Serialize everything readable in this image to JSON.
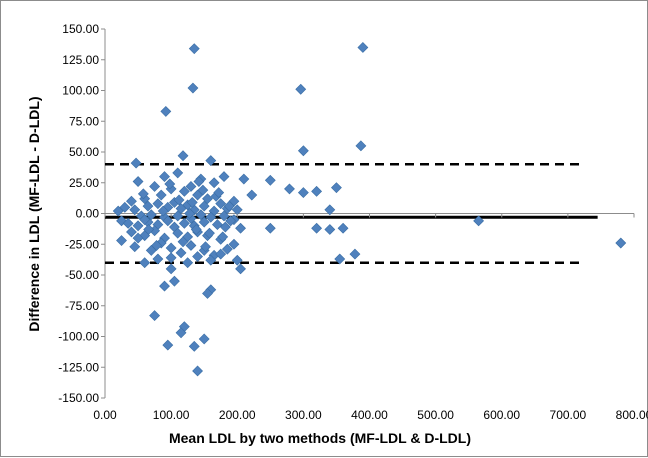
{
  "chart_data": {
    "type": "scatter",
    "title": "",
    "xlabel": "Mean LDL by two methods (MF-LDL & D-LDL)",
    "ylabel": "Difference in LDL (MF-LDL - D-LDL)",
    "xlim": [
      0,
      800
    ],
    "ylim": [
      -150,
      150
    ],
    "x_ticks": [
      "0.00",
      "100.00",
      "200.00",
      "300.00",
      "400.00",
      "500.00",
      "600.00",
      "700.00",
      "800.00"
    ],
    "y_ticks": [
      "150.00",
      "125.00",
      "100.00",
      "75.00",
      "50.00",
      "25.00",
      "0.00",
      "-25.00",
      "-50.00",
      "-75.00",
      "-100.00",
      "-125.00",
      "-150.00"
    ],
    "reference_lines": [
      {
        "style": "solid",
        "y": -3,
        "x_range": [
          0,
          745
        ]
      },
      {
        "style": "dashed",
        "y": 40,
        "x_range": [
          0,
          720
        ]
      },
      {
        "style": "dashed",
        "y": -40,
        "x_range": [
          0,
          720
        ]
      }
    ],
    "marker_color": "#4f81bd",
    "series": [
      {
        "points": [
          [
            135,
            134
          ],
          [
            133,
            102
          ],
          [
            296,
            101
          ],
          [
            92,
            83
          ],
          [
            390,
            135
          ],
          [
            300,
            51
          ],
          [
            387,
            55
          ],
          [
            118,
            47
          ],
          [
            160,
            43
          ],
          [
            47,
            41
          ],
          [
            180,
            30
          ],
          [
            90,
            30
          ],
          [
            210,
            28
          ],
          [
            250,
            27
          ],
          [
            279,
            20
          ],
          [
            300,
            17
          ],
          [
            320,
            18
          ],
          [
            350,
            21
          ],
          [
            340,
            3
          ],
          [
            222,
            15
          ],
          [
            110,
            33
          ],
          [
            145,
            28
          ],
          [
            165,
            25
          ],
          [
            50,
            26
          ],
          [
            75,
            22
          ],
          [
            100,
            20
          ],
          [
            130,
            22
          ],
          [
            195,
            10
          ],
          [
            40,
            10
          ],
          [
            60,
            12
          ],
          [
            85,
            15
          ],
          [
            120,
            18
          ],
          [
            140,
            15
          ],
          [
            155,
            12
          ],
          [
            175,
            8
          ],
          [
            20,
            2
          ],
          [
            30,
            5
          ],
          [
            45,
            3
          ],
          [
            65,
            6
          ],
          [
            80,
            8
          ],
          [
            95,
            5
          ],
          [
            105,
            9
          ],
          [
            115,
            4
          ],
          [
            125,
            7
          ],
          [
            135,
            3
          ],
          [
            150,
            6
          ],
          [
            165,
            2
          ],
          [
            185,
            4
          ],
          [
            200,
            3
          ],
          [
            55,
            -2
          ],
          [
            70,
            -1
          ],
          [
            90,
            -3
          ],
          [
            110,
            -2
          ],
          [
            130,
            -4
          ],
          [
            145,
            -1
          ],
          [
            160,
            -3
          ],
          [
            180,
            -2
          ],
          [
            195,
            -5
          ],
          [
            25,
            -6
          ],
          [
            35,
            -8
          ],
          [
            50,
            -10
          ],
          [
            65,
            -7
          ],
          [
            80,
            -9
          ],
          [
            95,
            -6
          ],
          [
            105,
            -11
          ],
          [
            120,
            -8
          ],
          [
            135,
            -10
          ],
          [
            150,
            -7
          ],
          [
            170,
            -9
          ],
          [
            190,
            -6
          ],
          [
            205,
            -12
          ],
          [
            40,
            -15
          ],
          [
            60,
            -18
          ],
          [
            75,
            -14
          ],
          [
            90,
            -20
          ],
          [
            110,
            -16
          ],
          [
            125,
            -19
          ],
          [
            140,
            -15
          ],
          [
            155,
            -18
          ],
          [
            175,
            -21
          ],
          [
            195,
            -25
          ],
          [
            25,
            -22
          ],
          [
            45,
            -27
          ],
          [
            70,
            -30
          ],
          [
            85,
            -24
          ],
          [
            100,
            -28
          ],
          [
            115,
            -32
          ],
          [
            130,
            -26
          ],
          [
            150,
            -30
          ],
          [
            165,
            -34
          ],
          [
            200,
            -38
          ],
          [
            205,
            -45
          ],
          [
            250,
            -12
          ],
          [
            320,
            -12
          ],
          [
            340,
            -13
          ],
          [
            360,
            -12
          ],
          [
            378,
            -33
          ],
          [
            355,
            -37
          ],
          [
            565,
            -6
          ],
          [
            780,
            -24
          ],
          [
            100,
            -45
          ],
          [
            90,
            -59
          ],
          [
            105,
            -55
          ],
          [
            160,
            -62
          ],
          [
            155,
            -65
          ],
          [
            75,
            -83
          ],
          [
            120,
            -92
          ],
          [
            115,
            -97
          ],
          [
            150,
            -102
          ],
          [
            95,
            -107
          ],
          [
            135,
            -108
          ],
          [
            140,
            -128
          ],
          [
            60,
            -40
          ],
          [
            80,
            -37
          ],
          [
            175,
            -33
          ],
          [
            185,
            -29
          ],
          [
            100,
            -36
          ],
          [
            125,
            -40
          ],
          [
            140,
            -35
          ],
          [
            160,
            -38
          ],
          [
            50,
            -20
          ],
          [
            60,
            -5
          ],
          [
            88,
            2
          ],
          [
            112,
            11
          ],
          [
            128,
            0
          ],
          [
            138,
            -13
          ],
          [
            148,
            19
          ],
          [
            158,
            -16
          ],
          [
            168,
            14
          ],
          [
            178,
            -19
          ],
          [
            188,
            6
          ],
          [
            98,
            24
          ],
          [
            78,
            -26
          ],
          [
            58,
            16
          ],
          [
            66,
            -13
          ],
          [
            118,
            -23
          ],
          [
            132,
            9
          ],
          [
            142,
            26
          ],
          [
            152,
            -27
          ],
          [
            172,
            17
          ],
          [
            182,
            -11
          ]
        ]
      }
    ]
  }
}
